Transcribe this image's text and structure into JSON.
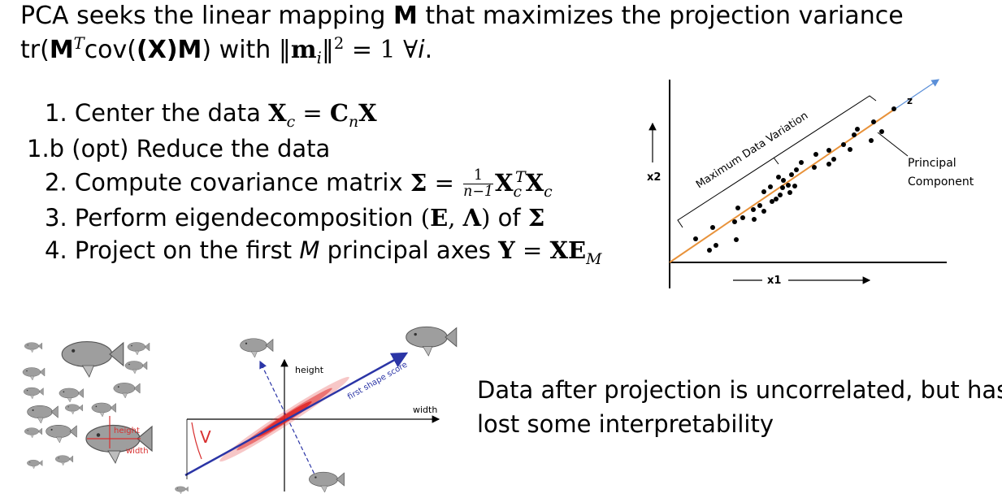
{
  "intro": {
    "line1": "PCA seeks the linear mapping M that maximizes the projection variance",
    "line1_pre": "PCA seeks the linear mapping ",
    "line1_M": "M",
    "line1_post": " that maximizes the projection variance",
    "line2_tr": "tr(",
    "line2_cov": "cov(",
    "line2_with": " with ",
    "line2_eq": " = 1 ∀",
    "line2_i": "i",
    "line2_end": "."
  },
  "steps": [
    {
      "num": "1.",
      "text": "Center the data "
    },
    {
      "num": "1.b",
      "text": "(opt) Reduce the data"
    },
    {
      "num": "2.",
      "text": "Compute covariance matrix "
    },
    {
      "num": "3.",
      "text": "Perform eigendecomposition "
    },
    {
      "num": "4.",
      "text": "Project on the first "
    }
  ],
  "step3_of": " of ",
  "step4_M": "M",
  "step4_axes": " principal axes ",
  "diagram_top": {
    "x2_label": "x2",
    "x1_label": "x1",
    "z_label": "z",
    "variation_label": "Maximum Data Variation",
    "principal_label_1": "Principal",
    "principal_label_2": "Component"
  },
  "diagram_bottom": {
    "height_axis": "height",
    "width_axis": "width",
    "score_label": "first shape score",
    "v_label": "V",
    "fish_height": "height",
    "fish_width": "width"
  },
  "conclusion": {
    "line1": "Data after projection is uncorrelated, but has",
    "line2": "lost some interpretability"
  },
  "colors": {
    "principal_line": "#e8923a",
    "axis_arrow": "#5b8fd8",
    "scatter_red": "#e02020",
    "score_axis": "#2b35a6",
    "fish_gray": "#9e9e9e"
  }
}
